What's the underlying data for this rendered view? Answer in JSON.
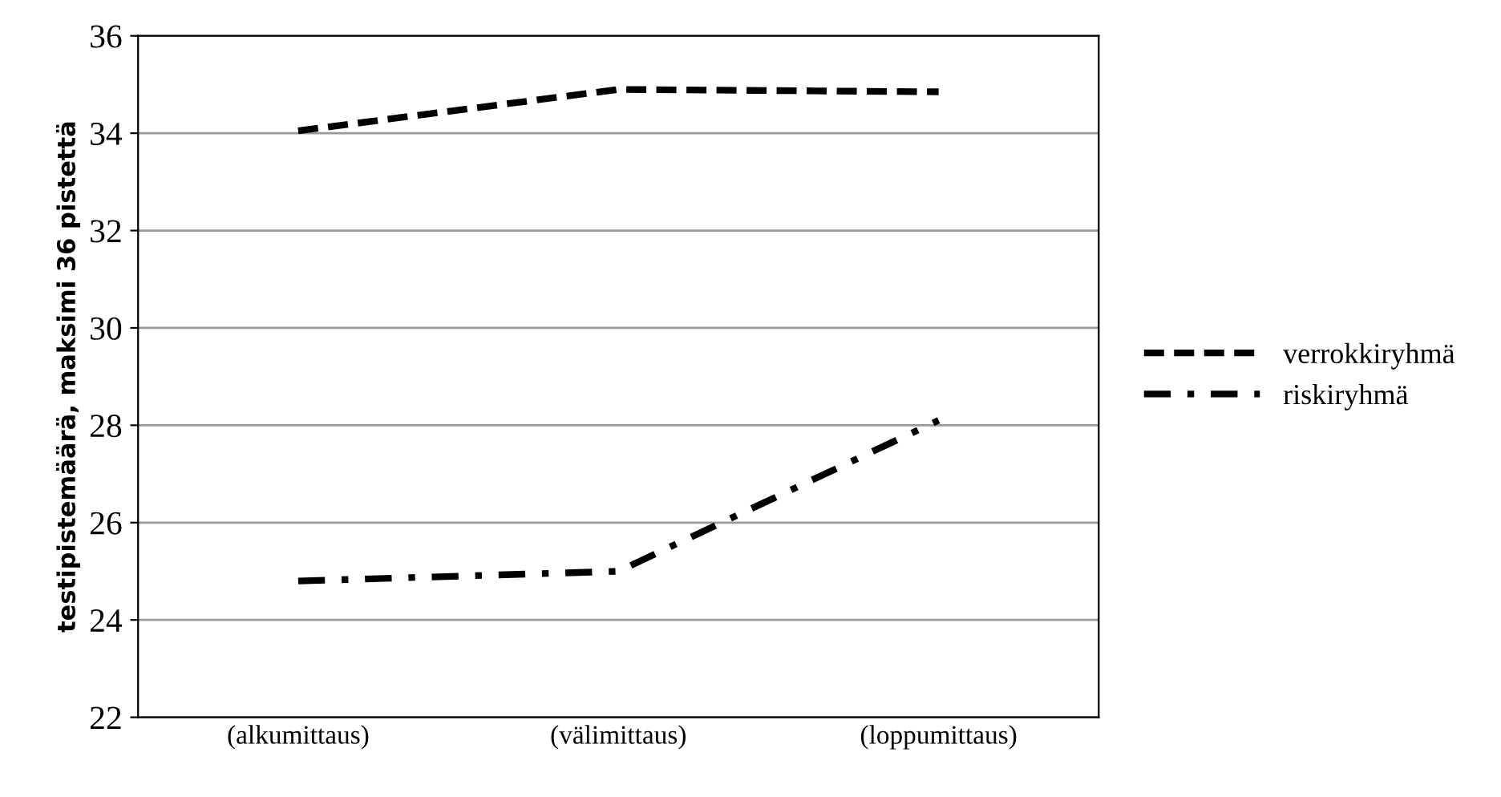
{
  "chart_data": {
    "type": "line",
    "ylabel": "testipistemäärä, maksimi 36 pistettä",
    "categories": [
      "(alkumittaus)",
      "(välimittaus)",
      "(loppumittaus)"
    ],
    "series": [
      {
        "name": "verrokkiryhmä",
        "color": "#000000",
        "line_style": "dashed",
        "values": [
          34.05,
          34.9,
          34.85
        ]
      },
      {
        "name": "riskiryhmä",
        "color": "#000000",
        "line_style": "dashdot",
        "values": [
          24.8,
          25.0,
          28.1
        ]
      }
    ],
    "ylim": [
      22,
      36
    ],
    "yticks": [
      22,
      24,
      26,
      28,
      30,
      32,
      34,
      36
    ],
    "grid": "y",
    "legend": "right",
    "marker": "none"
  }
}
